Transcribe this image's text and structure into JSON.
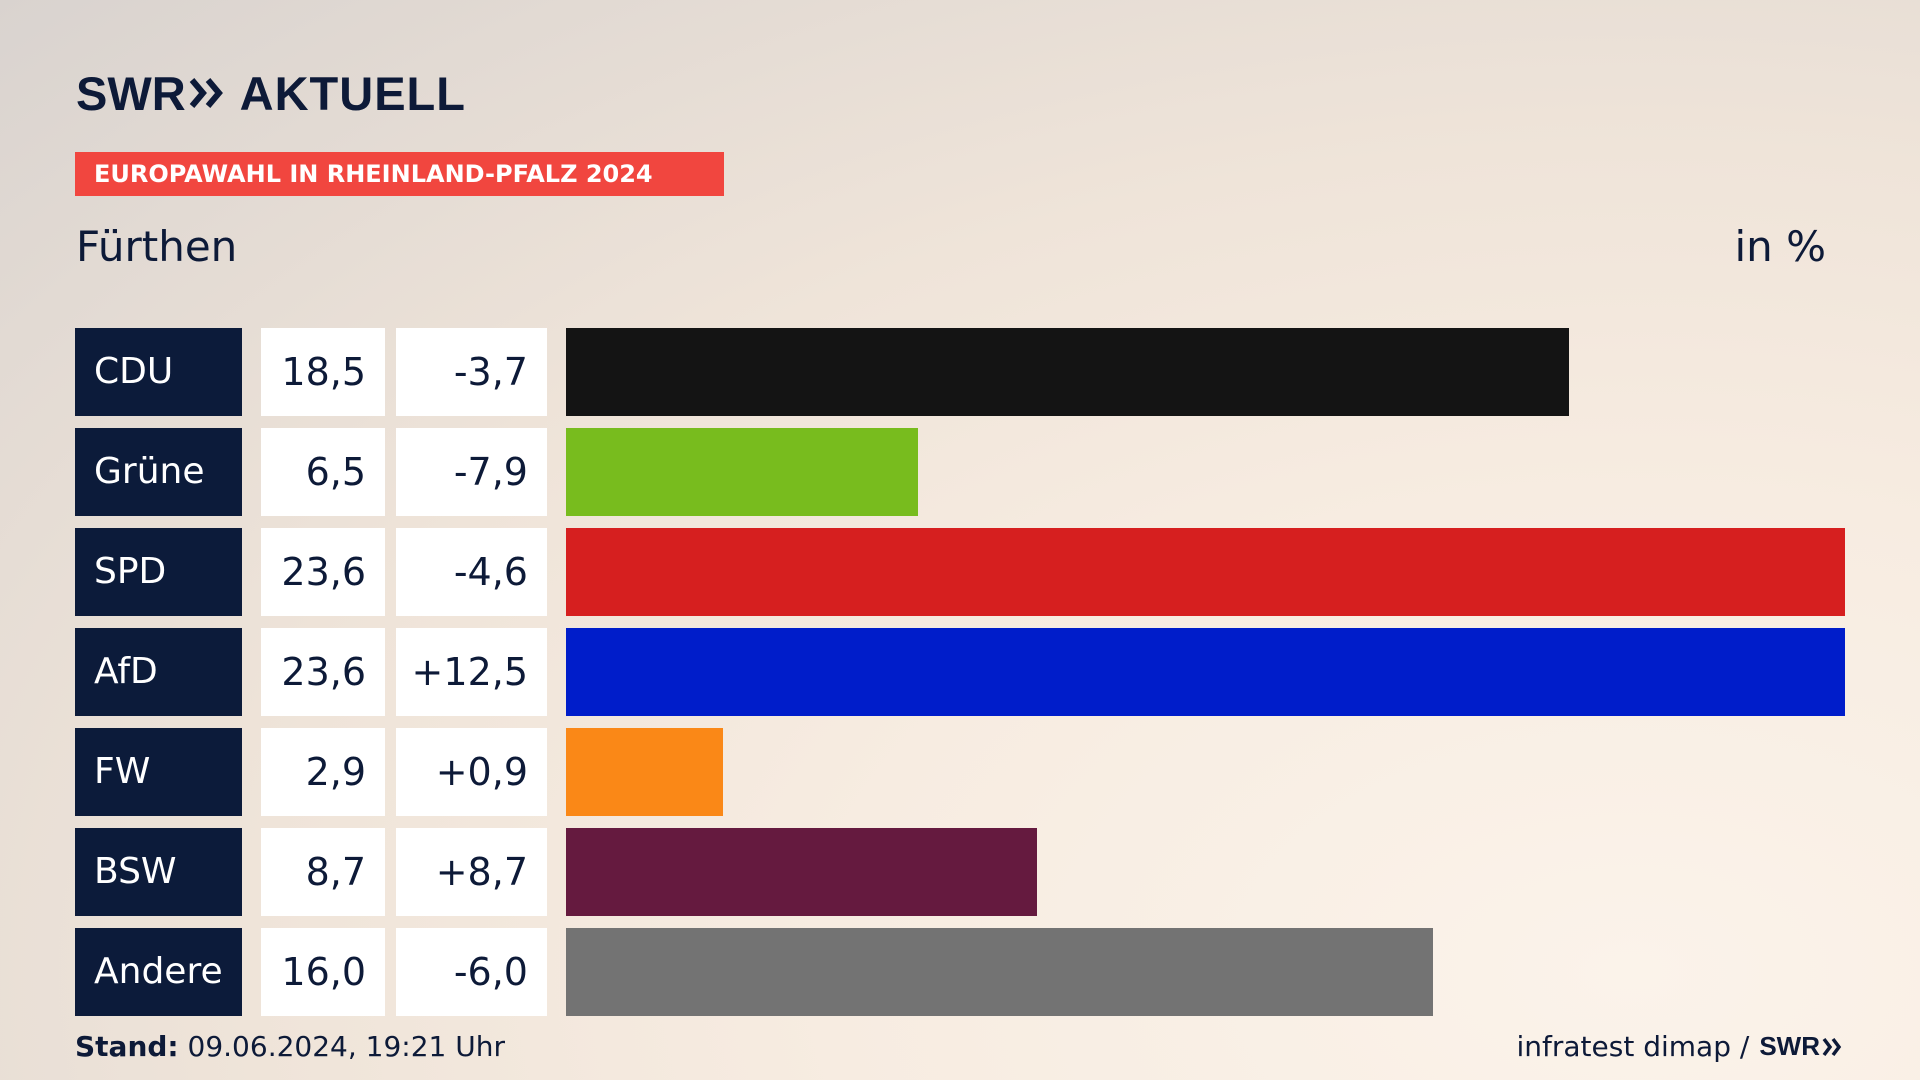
{
  "header": {
    "logo_brand": "SWR",
    "logo_section": "AKTUELL",
    "banner": "EUROPAWAHL IN RHEINLAND-PFALZ 2024",
    "place": "Fürthen",
    "unit": "in %"
  },
  "chart_data": {
    "type": "bar",
    "orientation": "horizontal",
    "title": "EUROPAWAHL IN RHEINLAND-PFALZ 2024",
    "subtitle": "Fürthen",
    "unit": "in %",
    "xlim": [
      0,
      23.6
    ],
    "categories": [
      "CDU",
      "Grüne",
      "SPD",
      "AfD",
      "FW",
      "BSW",
      "Andere"
    ],
    "values": [
      18.5,
      6.5,
      23.6,
      23.6,
      2.9,
      8.7,
      16.0
    ],
    "value_labels": [
      "18,5",
      "6,5",
      "23,6",
      "23,6",
      "2,9",
      "8,7",
      "16,0"
    ],
    "diff_labels": [
      "-3,7",
      "-7,9",
      "-4,6",
      "+12,5",
      "+0,9",
      "+8,7",
      "-6,0"
    ],
    "colors": [
      "#141414",
      "#78bc1e",
      "#d61f1f",
      "#001dca",
      "#fa8817",
      "#651a3f",
      "#737373"
    ]
  },
  "footer": {
    "stand_label": "Stand:",
    "stand_value": "09.06.2024, 19:21 Uhr",
    "source": "infratest dimap /",
    "source_brand": "SWR"
  }
}
